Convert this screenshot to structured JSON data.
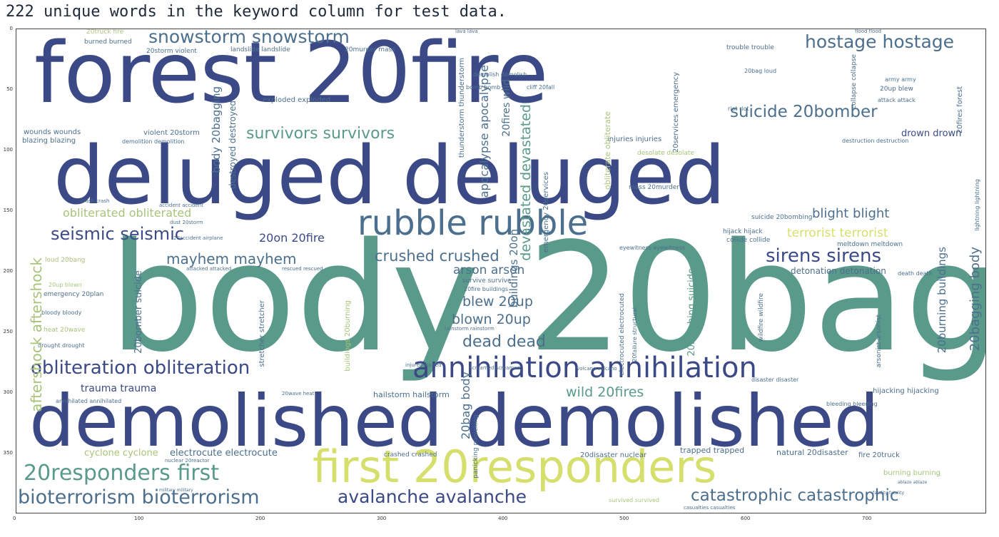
{
  "title": "222 unique words in the keyword column for test data.",
  "colors": {
    "dark": "#3b4a86",
    "mid": "#4c6f8e",
    "teal": "#5a9a8a",
    "light": "#a8c47a",
    "yellow": "#d6df6c"
  },
  "axes": {
    "y_ticks": [
      "0",
      "50",
      "100",
      "150",
      "200",
      "250",
      "300",
      "350"
    ],
    "x_ticks": [
      "0",
      "100",
      "200",
      "300",
      "400",
      "500",
      "600",
      "700"
    ]
  },
  "words": [
    {
      "text": "forest 20fire"
    },
    {
      "text": "deluged deluged"
    },
    {
      "text": "body 20bag"
    },
    {
      "text": "demolished demolished"
    },
    {
      "text": "first 20responders"
    },
    {
      "text": "rubble rubble"
    },
    {
      "text": "annihilation annihilation"
    },
    {
      "text": "obliteration obliteration"
    },
    {
      "text": "snowstorm snowstorm"
    },
    {
      "text": "hostage hostage"
    },
    {
      "text": "suicide 20bomber"
    },
    {
      "text": "seismic seismic"
    },
    {
      "text": "sirens sirens"
    },
    {
      "text": "mayhem mayhem"
    },
    {
      "text": "crushed crushed"
    },
    {
      "text": "20responders first"
    },
    {
      "text": "bioterrorism bioterrorism"
    },
    {
      "text": "avalanche avalanche"
    },
    {
      "text": "catastrophic catastrophic"
    },
    {
      "text": "survivors survivors"
    },
    {
      "text": "obliterated obliterated"
    },
    {
      "text": "terrorist terrorist"
    },
    {
      "text": "blight blight"
    },
    {
      "text": "dead dead"
    },
    {
      "text": "wild 20fires"
    },
    {
      "text": "blew 20up"
    },
    {
      "text": "blown 20up"
    },
    {
      "text": "arson arson"
    },
    {
      "text": "20on 20fire"
    },
    {
      "text": "trauma trauma"
    },
    {
      "text": "electrocute electrocute"
    },
    {
      "text": "cyclone cyclone"
    },
    {
      "text": "drown drown"
    },
    {
      "text": "detonation detonation"
    },
    {
      "text": "hailstorm hailstorm"
    },
    {
      "text": "trapped trapped"
    },
    {
      "text": "20disaster nuclear"
    },
    {
      "text": "natural 20disaster"
    },
    {
      "text": "fire 20truck"
    },
    {
      "text": "crashed crashed"
    },
    {
      "text": "burning burning"
    },
    {
      "text": "exploded exploded"
    },
    {
      "text": "wounds wounds"
    },
    {
      "text": "blazing blazing"
    },
    {
      "text": "violent 20storm"
    },
    {
      "text": "demolition demolition"
    },
    {
      "text": "injuries injuries"
    },
    {
      "text": "mass 20murder"
    },
    {
      "text": "suicide 20bombing"
    },
    {
      "text": "hijack hijack"
    },
    {
      "text": "collide collide"
    },
    {
      "text": "meltdown meltdown"
    },
    {
      "text": "eyewitness eyewitness"
    },
    {
      "text": "survive survive"
    },
    {
      "text": "20fire buildings"
    },
    {
      "text": "riot riot"
    },
    {
      "text": "attack attack"
    },
    {
      "text": "army army"
    },
    {
      "text": "trouble trouble"
    },
    {
      "text": "20bag loud"
    },
    {
      "text": "20up blew"
    },
    {
      "text": "destruction destruction"
    },
    {
      "text": "bomb bomb"
    },
    {
      "text": "cliff 20fall"
    },
    {
      "text": "demolish demolish"
    },
    {
      "text": "20truck fire"
    },
    {
      "text": "burned burned"
    },
    {
      "text": "20storm violent"
    },
    {
      "text": "landslide landslide"
    },
    {
      "text": "20murder mass"
    },
    {
      "text": "lava lava"
    },
    {
      "text": "flood flood"
    },
    {
      "text": "emergency 20plan"
    },
    {
      "text": "loud 20bang"
    },
    {
      "text": "20up blown"
    },
    {
      "text": "heat 20wave"
    },
    {
      "text": "drought drought"
    },
    {
      "text": "bloody bloody"
    },
    {
      "text": "annihilated annihilated"
    },
    {
      "text": "nuclear 20reactor"
    },
    {
      "text": "20wave heat"
    },
    {
      "text": "hijacking hijacking"
    },
    {
      "text": "bleeding bleeding"
    },
    {
      "text": "disaster disaster"
    },
    {
      "text": "death death"
    },
    {
      "text": "rescued rescued"
    },
    {
      "text": "attacked attacked"
    },
    {
      "text": "crash crash"
    },
    {
      "text": "accident accident"
    },
    {
      "text": "dust 20storm"
    },
    {
      "text": "20accident airplane"
    },
    {
      "text": "rainstorm rainstorm"
    },
    {
      "text": "injured injured"
    },
    {
      "text": "screamed screamed"
    },
    {
      "text": "volcano volcano"
    },
    {
      "text": "survived survived"
    },
    {
      "text": "casualties casualties"
    },
    {
      "text": "fatality fatality"
    },
    {
      "text": "military military"
    },
    {
      "text": "ablaze ablaze"
    },
    {
      "text": "panicking panicking"
    },
    {
      "text": "20bag body"
    },
    {
      "text": "body 20bagging"
    },
    {
      "text": "destroyed destroyed"
    },
    {
      "text": "apocalypse apocalypse"
    },
    {
      "text": "20fires wild"
    },
    {
      "text": "devastated devastated"
    },
    {
      "text": "buildings 20on"
    },
    {
      "text": "20bomber suicide"
    },
    {
      "text": "aftershock aftershock"
    },
    {
      "text": "thunderstorm thunderstorm"
    },
    {
      "text": "emergency 20services"
    },
    {
      "text": "obliterate obliterate"
    },
    {
      "text": "20bagging body"
    },
    {
      "text": "20burning buildings"
    },
    {
      "text": "20services emergency"
    },
    {
      "text": "20bombing suicide"
    },
    {
      "text": "wildfire wildfire"
    },
    {
      "text": "stretcher stretcher"
    },
    {
      "text": "buildings 20burning"
    },
    {
      "text": "lightning lightning"
    },
    {
      "text": "20fires forest"
    },
    {
      "text": "electrocuted electrocuted"
    },
    {
      "text": "20failure structural"
    },
    {
      "text": "collapse collapse"
    },
    {
      "text": "arsonist arsonist"
    },
    {
      "text": "desolate desolate"
    }
  ]
}
